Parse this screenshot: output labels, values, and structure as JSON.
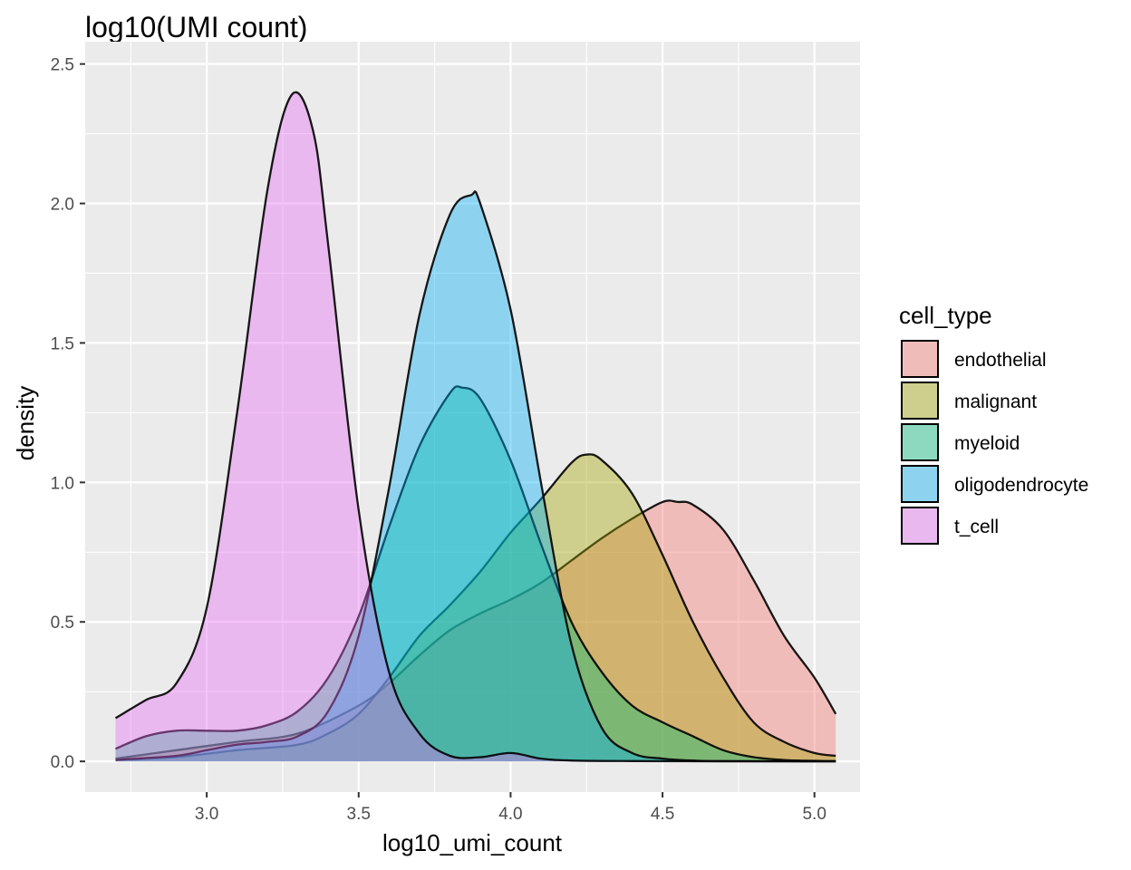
{
  "chart_data": {
    "type": "area",
    "title": "log10(UMI count)",
    "xlabel": "log10_umi_count",
    "ylabel": "density",
    "xlim": [
      2.6,
      5.15
    ],
    "ylim": [
      -0.11,
      2.58
    ],
    "x_ticks": [
      3.0,
      3.5,
      4.0,
      4.5,
      5.0
    ],
    "x_tick_labels": [
      "3.0",
      "3.5",
      "4.0",
      "4.5",
      "5.0"
    ],
    "y_ticks": [
      0.0,
      0.5,
      1.0,
      1.5,
      2.0,
      2.5
    ],
    "y_tick_labels": [
      "0.0",
      "0.5",
      "1.0",
      "1.5",
      "2.0",
      "2.5"
    ],
    "grid": true,
    "legend": {
      "title": "cell_type",
      "placement": "right"
    },
    "series": [
      {
        "name": "endothelial",
        "color": "#F8766D",
        "points": [
          [
            2.7,
            0.01
          ],
          [
            2.9,
            0.04
          ],
          [
            3.1,
            0.07
          ],
          [
            3.3,
            0.1
          ],
          [
            3.5,
            0.2
          ],
          [
            3.6,
            0.28
          ],
          [
            3.7,
            0.38
          ],
          [
            3.8,
            0.47
          ],
          [
            3.9,
            0.53
          ],
          [
            4.0,
            0.58
          ],
          [
            4.1,
            0.64
          ],
          [
            4.2,
            0.72
          ],
          [
            4.3,
            0.8
          ],
          [
            4.4,
            0.87
          ],
          [
            4.5,
            0.93
          ],
          [
            4.55,
            0.93
          ],
          [
            4.6,
            0.92
          ],
          [
            4.7,
            0.83
          ],
          [
            4.8,
            0.65
          ],
          [
            4.9,
            0.45
          ],
          [
            5.0,
            0.3
          ],
          [
            5.07,
            0.17
          ]
        ]
      },
      {
        "name": "malignant",
        "color": "#A3A500",
        "points": [
          [
            2.7,
            0.005
          ],
          [
            2.9,
            0.015
          ],
          [
            3.1,
            0.04
          ],
          [
            3.3,
            0.06
          ],
          [
            3.4,
            0.1
          ],
          [
            3.5,
            0.17
          ],
          [
            3.6,
            0.3
          ],
          [
            3.7,
            0.45
          ],
          [
            3.8,
            0.56
          ],
          [
            3.9,
            0.68
          ],
          [
            4.0,
            0.82
          ],
          [
            4.1,
            0.94
          ],
          [
            4.2,
            1.07
          ],
          [
            4.25,
            1.1
          ],
          [
            4.3,
            1.08
          ],
          [
            4.4,
            0.96
          ],
          [
            4.5,
            0.74
          ],
          [
            4.6,
            0.5
          ],
          [
            4.7,
            0.3
          ],
          [
            4.8,
            0.14
          ],
          [
            4.9,
            0.07
          ],
          [
            5.0,
            0.03
          ],
          [
            5.07,
            0.02
          ]
        ]
      },
      {
        "name": "myeloid",
        "color": "#00BF7D",
        "points": [
          [
            2.7,
            0.045
          ],
          [
            2.8,
            0.09
          ],
          [
            2.9,
            0.11
          ],
          [
            3.0,
            0.11
          ],
          [
            3.1,
            0.11
          ],
          [
            3.2,
            0.13
          ],
          [
            3.3,
            0.18
          ],
          [
            3.4,
            0.3
          ],
          [
            3.5,
            0.52
          ],
          [
            3.6,
            0.84
          ],
          [
            3.7,
            1.13
          ],
          [
            3.8,
            1.32
          ],
          [
            3.84,
            1.34
          ],
          [
            3.9,
            1.3
          ],
          [
            4.0,
            1.08
          ],
          [
            4.1,
            0.78
          ],
          [
            4.2,
            0.5
          ],
          [
            4.3,
            0.32
          ],
          [
            4.4,
            0.2
          ],
          [
            4.5,
            0.14
          ],
          [
            4.6,
            0.09
          ],
          [
            4.7,
            0.04
          ],
          [
            4.8,
            0.015
          ],
          [
            4.9,
            0.005
          ],
          [
            5.0,
            0.002
          ],
          [
            5.07,
            0.001
          ]
        ]
      },
      {
        "name": "oligodendrocyte",
        "color": "#00B0F6",
        "points": [
          [
            2.7,
            0.005
          ],
          [
            2.9,
            0.02
          ],
          [
            3.0,
            0.04
          ],
          [
            3.1,
            0.06
          ],
          [
            3.2,
            0.07
          ],
          [
            3.3,
            0.09
          ],
          [
            3.4,
            0.18
          ],
          [
            3.5,
            0.45
          ],
          [
            3.6,
            0.98
          ],
          [
            3.7,
            1.6
          ],
          [
            3.8,
            1.96
          ],
          [
            3.87,
            2.03
          ],
          [
            3.9,
            2.0
          ],
          [
            4.0,
            1.62
          ],
          [
            4.1,
            1.0
          ],
          [
            4.2,
            0.42
          ],
          [
            4.3,
            0.12
          ],
          [
            4.4,
            0.03
          ],
          [
            4.5,
            0.01
          ],
          [
            4.6,
            0.003
          ],
          [
            4.7,
            0.001
          ],
          [
            5.07,
            0.0
          ]
        ]
      },
      {
        "name": "t_cell",
        "color": "#E76BF3",
        "points": [
          [
            2.7,
            0.155
          ],
          [
            2.8,
            0.22
          ],
          [
            2.9,
            0.28
          ],
          [
            3.0,
            0.55
          ],
          [
            3.1,
            1.25
          ],
          [
            3.2,
            2.05
          ],
          [
            3.28,
            2.39
          ],
          [
            3.35,
            2.26
          ],
          [
            3.4,
            1.85
          ],
          [
            3.5,
            0.9
          ],
          [
            3.6,
            0.32
          ],
          [
            3.7,
            0.1
          ],
          [
            3.8,
            0.02
          ],
          [
            3.9,
            0.015
          ],
          [
            4.0,
            0.03
          ],
          [
            4.1,
            0.01
          ],
          [
            4.2,
            0.003
          ],
          [
            4.4,
            0.001
          ],
          [
            4.7,
            0.0
          ],
          [
            5.07,
            0.0
          ]
        ]
      }
    ]
  }
}
